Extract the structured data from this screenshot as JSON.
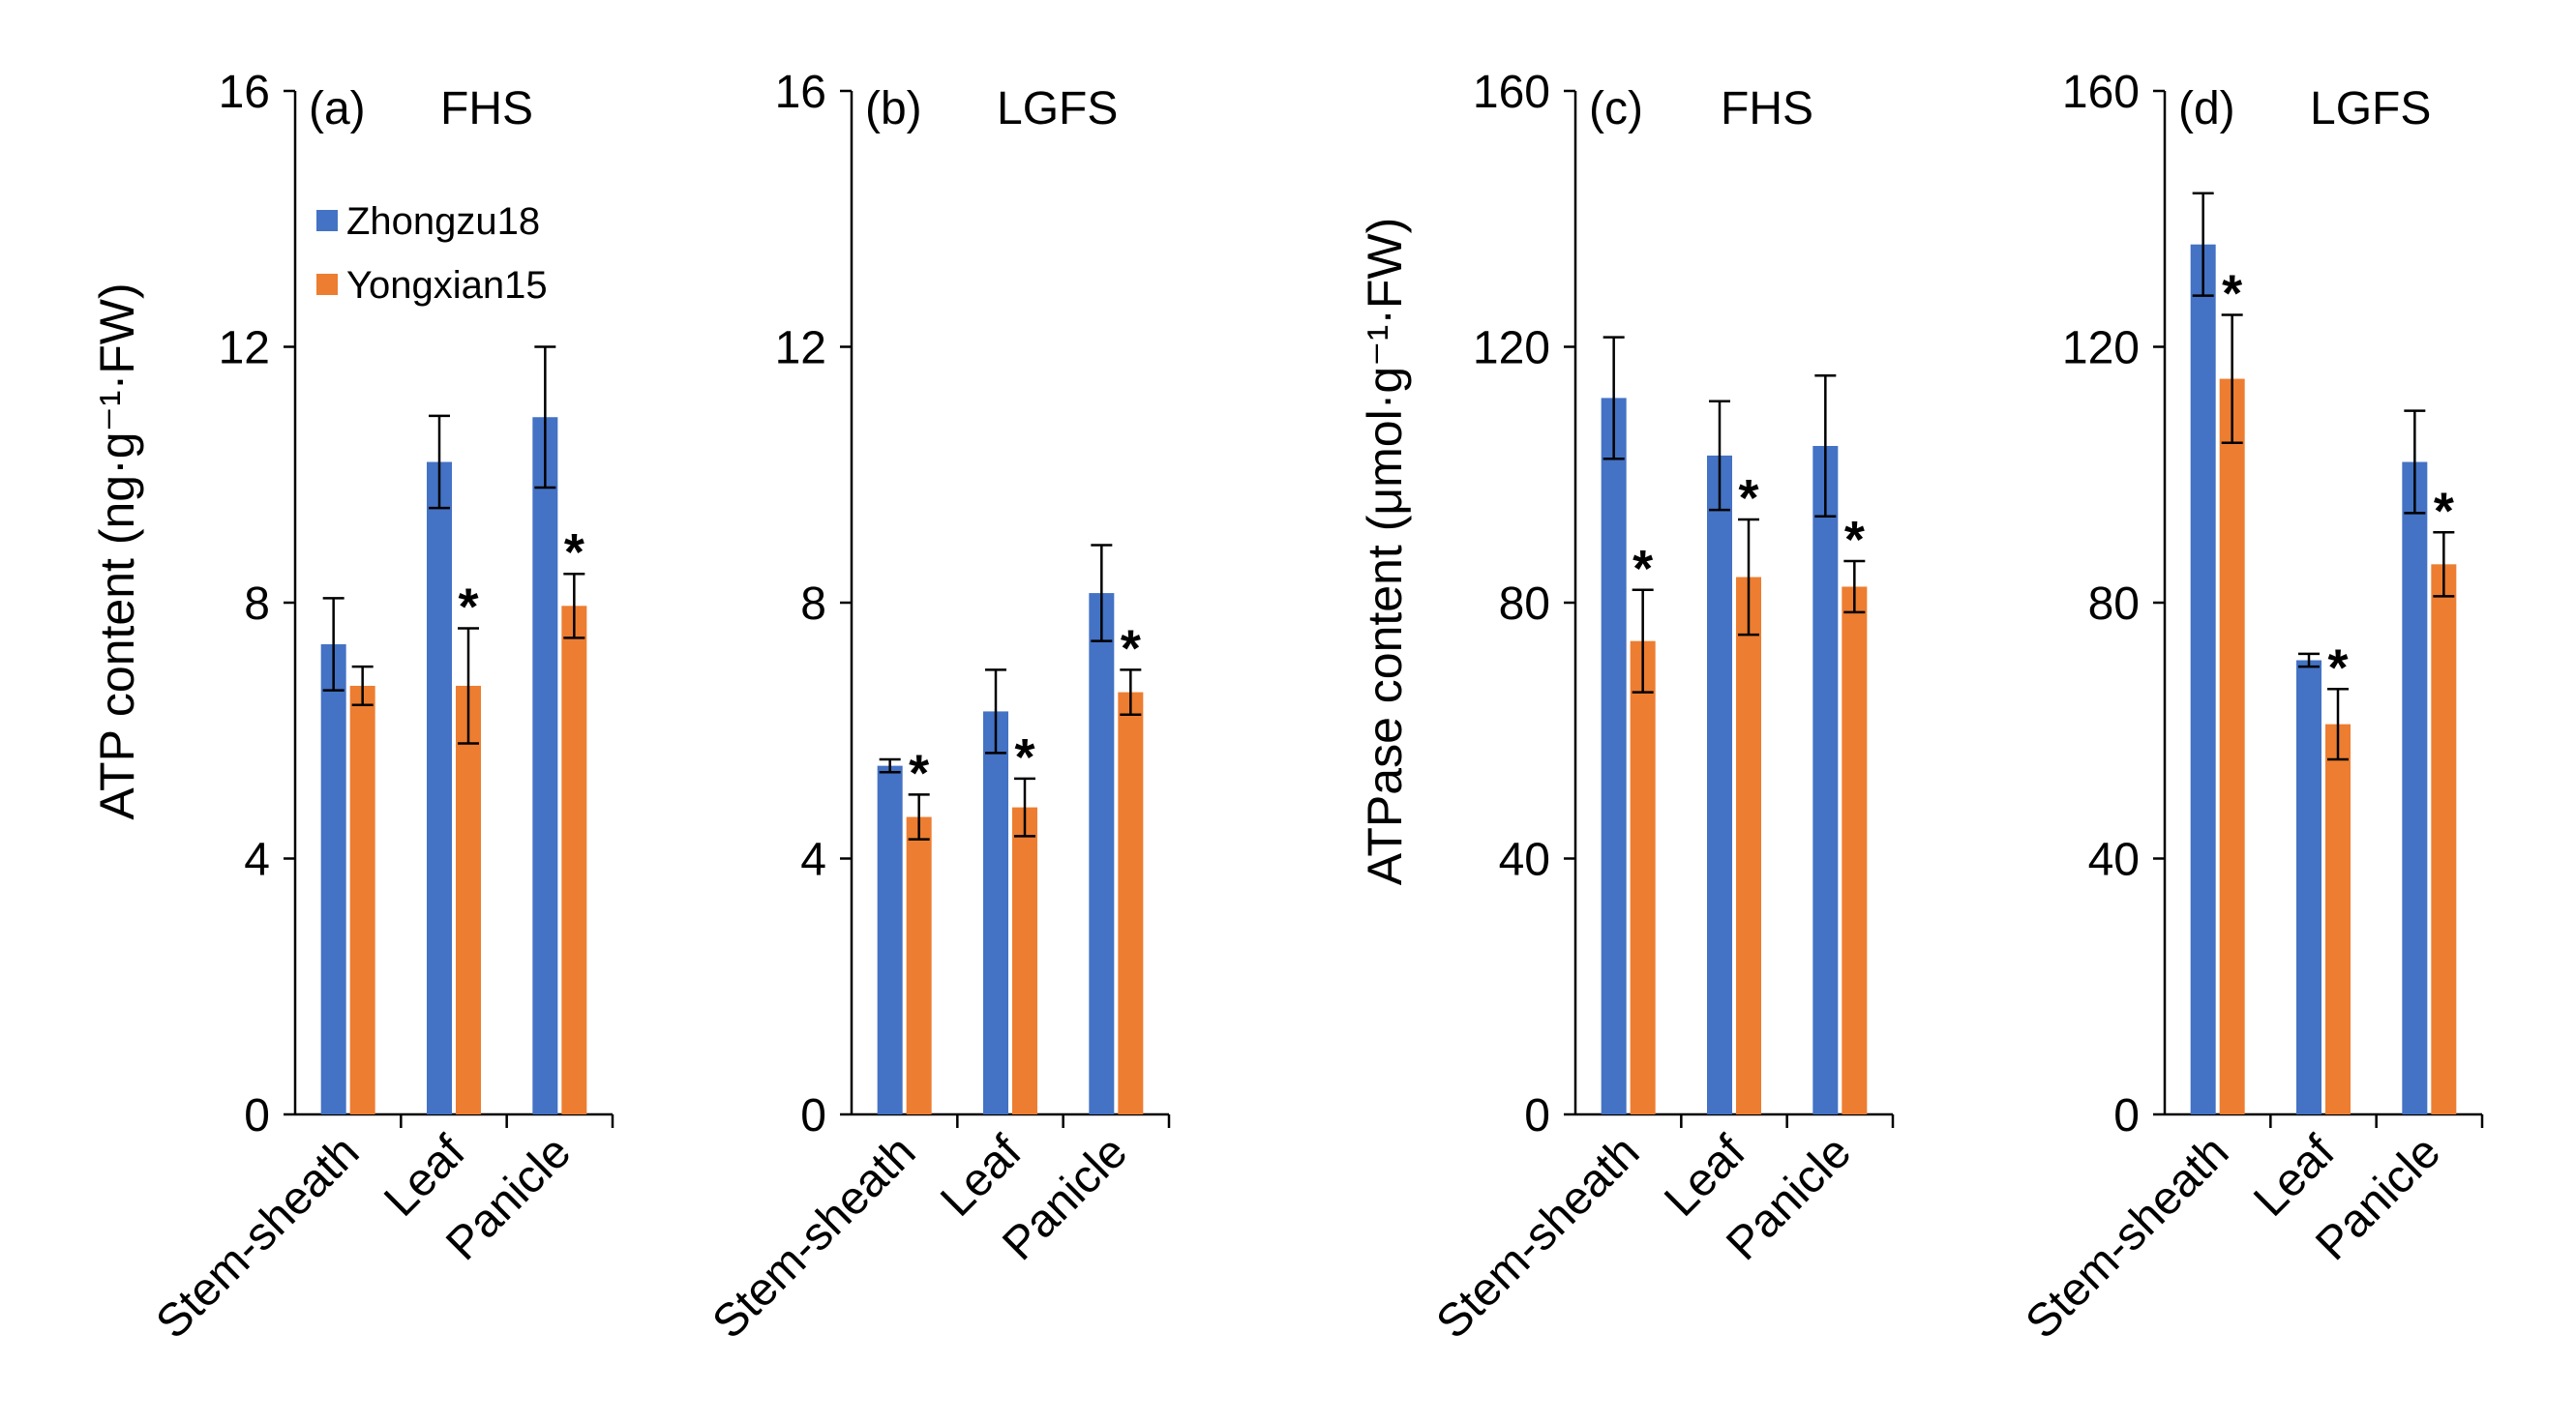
{
  "colors": {
    "series1": "#4472C4",
    "series2": "#ED7D31",
    "axis": "#000000"
  },
  "legend": [
    {
      "name": "Zhongzu18",
      "color": "#4472C4"
    },
    {
      "name": "Yongxian15",
      "color": "#ED7D31"
    }
  ],
  "ylabels": {
    "atp": "ATP content (ng·g⁻¹·FW)",
    "atpase": "ATPase content (μmol·g⁻¹·FW)"
  },
  "sig_marker": "*",
  "chart_data": [
    {
      "type": "bar",
      "panel": "(a)",
      "title": "FHS",
      "ylabel": "ATP content (ng·g⁻¹·FW)",
      "ylim": [
        0,
        16
      ],
      "yticks": [
        "0",
        "4",
        "8",
        "12",
        "16"
      ],
      "categories": [
        "Stem-sheath",
        "Leaf",
        "Panicle"
      ],
      "series": [
        {
          "name": "Zhongzu18",
          "values": [
            7.35,
            10.2,
            10.9
          ],
          "errors": [
            0.72,
            0.72,
            1.1
          ]
        },
        {
          "name": "Yongxian15",
          "values": [
            6.7,
            6.7,
            7.95
          ],
          "errors": [
            0.3,
            0.9,
            0.5
          ]
        }
      ],
      "significant": [
        [
          false,
          false,
          false
        ],
        [
          false,
          true,
          true
        ]
      ],
      "legend": "top-left"
    },
    {
      "type": "bar",
      "panel": "(b)",
      "title": "LGFS",
      "ylim": [
        0,
        16
      ],
      "yticks": [
        "0",
        "4",
        "8",
        "12",
        "16"
      ],
      "categories": [
        "Stem-sheath",
        "Leaf",
        "Panicle"
      ],
      "series": [
        {
          "name": "Zhongzu18",
          "values": [
            5.45,
            6.3,
            8.15
          ],
          "errors": [
            0.1,
            0.65,
            0.75
          ]
        },
        {
          "name": "Yongxian15",
          "values": [
            4.65,
            4.8,
            6.6
          ],
          "errors": [
            0.35,
            0.45,
            0.35
          ]
        }
      ],
      "significant": [
        [
          false,
          false,
          false
        ],
        [
          true,
          true,
          true
        ]
      ]
    },
    {
      "type": "bar",
      "panel": "(c)",
      "title": "FHS",
      "ylabel": "ATPase content (μmol·g⁻¹·FW)",
      "ylim": [
        0,
        160
      ],
      "yticks": [
        "0",
        "40",
        "80",
        "120",
        "160"
      ],
      "categories": [
        "Stem-sheath",
        "Leaf",
        "Panicle"
      ],
      "series": [
        {
          "name": "Zhongzu18",
          "values": [
            112,
            103,
            104.5
          ],
          "errors": [
            9.5,
            8.5,
            11
          ]
        },
        {
          "name": "Yongxian15",
          "values": [
            74,
            84,
            82.5
          ],
          "errors": [
            8,
            9,
            4
          ]
        }
      ],
      "significant": [
        [
          false,
          false,
          false
        ],
        [
          true,
          true,
          true
        ]
      ]
    },
    {
      "type": "bar",
      "panel": "(d)",
      "title": "LGFS",
      "ylim": [
        0,
        160
      ],
      "yticks": [
        "0",
        "40",
        "80",
        "120",
        "160"
      ],
      "categories": [
        "Stem-sheath",
        "Leaf",
        "Panicle"
      ],
      "series": [
        {
          "name": "Zhongzu18",
          "values": [
            136,
            71,
            102
          ],
          "errors": [
            8,
            1,
            8
          ]
        },
        {
          "name": "Yongxian15",
          "values": [
            115,
            61,
            86
          ],
          "errors": [
            10,
            5.5,
            5
          ]
        }
      ],
      "significant": [
        [
          false,
          false,
          false
        ],
        [
          true,
          true,
          true
        ]
      ]
    }
  ]
}
